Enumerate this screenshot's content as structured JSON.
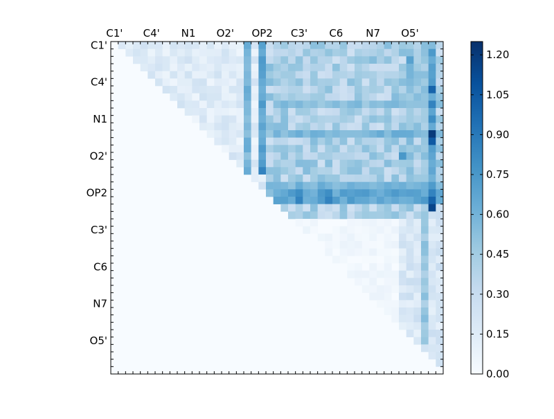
{
  "chart_data": {
    "type": "heatmap",
    "n": 45,
    "x_ticklabels": [
      "C1'",
      "C4'",
      "N1",
      "O2'",
      "OP2",
      "C3'",
      "C6",
      "N7",
      "O5'"
    ],
    "y_ticklabels": [
      "C1'",
      "C4'",
      "N1",
      "O2'",
      "OP2",
      "C3'",
      "C6",
      "N7",
      "O5'"
    ],
    "label_every": 5,
    "colormap": "Blues",
    "colorbar": {
      "min": 0.0,
      "max": 1.25,
      "ticks": [
        "0.00",
        "0.15",
        "0.30",
        "0.45",
        "0.60",
        "0.75",
        "0.90",
        "1.05",
        "1.20"
      ],
      "tick_values": [
        0.0,
        0.15,
        0.3,
        0.45,
        0.6,
        0.75,
        0.9,
        1.05,
        1.2
      ]
    },
    "upper_triangle_only": true,
    "colors": {
      "low": "#f7fbff",
      "high": "#08306b",
      "axes": "#000000"
    },
    "bright_cells": [
      {
        "row": 0,
        "col": 20,
        "value": 0.7
      },
      {
        "row": 0,
        "col": 43,
        "value": 0.55
      },
      {
        "row": 2,
        "col": 40,
        "value": 0.7
      },
      {
        "row": 4,
        "col": 43,
        "value": 0.7
      },
      {
        "row": 6,
        "col": 43,
        "value": 1.0
      },
      {
        "row": 8,
        "col": 43,
        "value": 0.85
      },
      {
        "row": 10,
        "col": 43,
        "value": 0.8
      },
      {
        "row": 12,
        "col": 43,
        "value": 1.2
      },
      {
        "row": 13,
        "col": 43,
        "value": 1.05
      },
      {
        "row": 15,
        "col": 39,
        "value": 0.75
      },
      {
        "row": 17,
        "col": 20,
        "value": 0.85
      },
      {
        "row": 20,
        "col": 43,
        "value": 0.85
      },
      {
        "row": 20,
        "col": 41,
        "value": 0.7
      },
      {
        "row": 21,
        "col": 43,
        "value": 1.0
      },
      {
        "row": 22,
        "col": 43,
        "value": 1.15
      },
      {
        "row": 20,
        "col": 25,
        "value": 0.8
      },
      {
        "row": 21,
        "col": 25,
        "value": 0.85
      },
      {
        "row": 20,
        "col": 29,
        "value": 0.8
      },
      {
        "row": 21,
        "col": 29,
        "value": 0.85
      }
    ],
    "bright_columns": [
      {
        "col": 18,
        "row_from": 0,
        "row_to": 18,
        "value": 0.5
      },
      {
        "col": 20,
        "row_from": 0,
        "row_to": 17,
        "value": 0.6
      },
      {
        "col": 40,
        "row_from": 0,
        "row_to": 17,
        "value": 0.45
      },
      {
        "col": 42,
        "row_from": 0,
        "row_to": 40,
        "value": 0.4
      },
      {
        "col": 43,
        "row_from": 0,
        "row_to": 22,
        "value": 0.6
      }
    ],
    "bright_rows": [
      {
        "row": 19,
        "col_from": 21,
        "col_to": 44,
        "value": 0.5
      },
      {
        "row": 20,
        "col_from": 22,
        "col_to": 44,
        "value": 0.6
      },
      {
        "row": 21,
        "col_from": 22,
        "col_to": 44,
        "value": 0.6
      },
      {
        "row": 12,
        "col_from": 22,
        "col_to": 44,
        "value": 0.5
      },
      {
        "row": 8,
        "col_from": 22,
        "col_to": 44,
        "value": 0.45
      }
    ]
  }
}
